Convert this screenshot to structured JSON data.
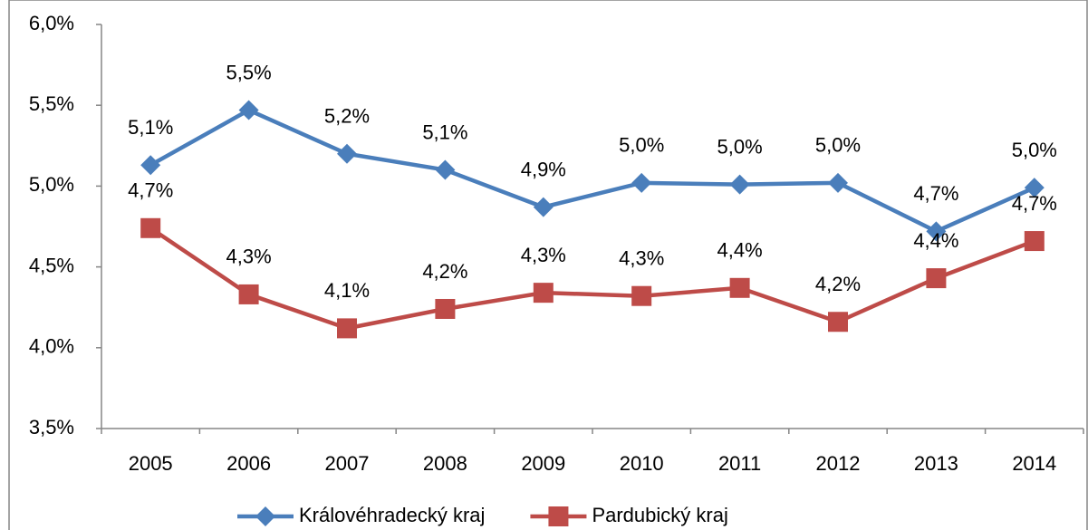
{
  "chart_data": {
    "type": "line",
    "categories": [
      "2005",
      "2006",
      "2007",
      "2008",
      "2009",
      "2010",
      "2011",
      "2012",
      "2013",
      "2014"
    ],
    "series": [
      {
        "name": "Královéhradecký kraj",
        "color": "#4a7ebb",
        "marker": "diamond",
        "values": [
          5.13,
          5.47,
          5.2,
          5.1,
          4.87,
          5.02,
          5.01,
          5.02,
          4.72,
          4.99
        ],
        "value_labels": [
          "5,1%",
          "5,5%",
          "5,2%",
          "5,1%",
          "4,9%",
          "5,0%",
          "5,0%",
          "5,0%",
          "4,7%",
          "5,0%"
        ]
      },
      {
        "name": "Pardubický kraj",
        "color": "#be4b48",
        "marker": "square",
        "values": [
          4.74,
          4.33,
          4.12,
          4.24,
          4.34,
          4.32,
          4.37,
          4.16,
          4.43,
          4.66
        ],
        "value_labels": [
          "4,7%",
          "4,3%",
          "4,1%",
          "4,2%",
          "4,3%",
          "4,3%",
          "4,4%",
          "4,2%",
          "4,4%",
          "4,7%"
        ]
      }
    ],
    "ylim": [
      3.5,
      6
    ],
    "yticks": [
      {
        "value": 3.5,
        "label": "3,5%"
      },
      {
        "value": 4,
        "label": "4,0%"
      },
      {
        "value": 4.5,
        "label": "4,5%"
      },
      {
        "value": 5,
        "label": "5,0%"
      },
      {
        "value": 5.5,
        "label": "5,5%"
      },
      {
        "value": 6,
        "label": "6,0%"
      }
    ],
    "grid": false,
    "legend": "bottom"
  }
}
